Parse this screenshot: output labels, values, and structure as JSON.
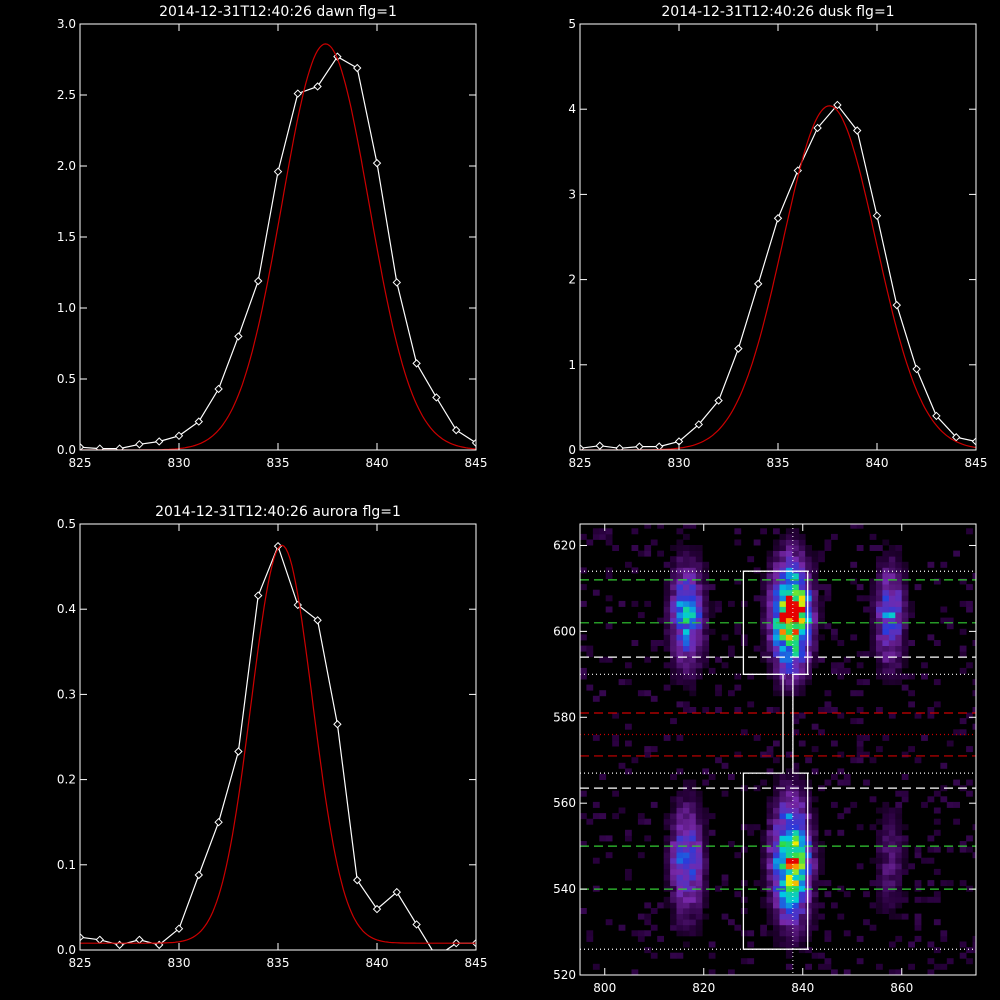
{
  "chart_data": [
    {
      "type": "line",
      "title": "2014-12-31T12:40:26 dawn flg=1",
      "xlim": [
        825,
        845
      ],
      "ylim": [
        0,
        3.0
      ],
      "xticks": [
        825,
        830,
        835,
        840,
        845
      ],
      "xtick_labels": [
        "825",
        "830",
        "835",
        "840",
        "845"
      ],
      "yticks": [
        0,
        0.5,
        1.0,
        1.5,
        2.0,
        2.5,
        3.0
      ],
      "ytick_labels": [
        "0.0",
        "0.5",
        "1.0",
        "1.5",
        "2.0",
        "2.5",
        "3.0"
      ],
      "series": [
        {
          "color": "#ffffff",
          "marker": "diamond",
          "x": [
            825,
            826,
            827,
            828,
            829,
            830,
            831,
            832,
            833,
            834,
            835,
            836,
            837,
            838,
            839,
            840,
            841,
            842,
            843,
            844,
            845
          ],
          "y": [
            0.02,
            0.01,
            0.01,
            0.04,
            0.06,
            0.1,
            0.2,
            0.43,
            0.8,
            1.19,
            1.96,
            2.51,
            2.56,
            2.77,
            2.69,
            2.02,
            1.18,
            0.61,
            0.37,
            0.14,
            0.05
          ]
        },
        {
          "color": "#cc0000",
          "kind": "gaussian-fit",
          "amplitude": 2.86,
          "center": 837.4,
          "sigma": 2.2
        }
      ]
    },
    {
      "type": "line",
      "title": "2014-12-31T12:40:26 dusk flg=1",
      "xlim": [
        825,
        845
      ],
      "ylim": [
        0,
        5
      ],
      "xticks": [
        825,
        830,
        835,
        840,
        845
      ],
      "xtick_labels": [
        "825",
        "830",
        "835",
        "840",
        "845"
      ],
      "yticks": [
        0,
        1,
        2,
        3,
        4,
        5
      ],
      "ytick_labels": [
        "0",
        "1",
        "2",
        "3",
        "4",
        "5"
      ],
      "series": [
        {
          "color": "#ffffff",
          "marker": "diamond",
          "x": [
            825,
            826,
            827,
            828,
            829,
            830,
            831,
            832,
            833,
            834,
            835,
            836,
            837,
            838,
            839,
            840,
            841,
            842,
            843,
            844,
            845
          ],
          "y": [
            0.02,
            0.05,
            0.02,
            0.04,
            0.04,
            0.1,
            0.3,
            0.58,
            1.19,
            1.95,
            2.72,
            3.28,
            3.78,
            4.05,
            3.75,
            2.75,
            1.7,
            0.95,
            0.4,
            0.15,
            0.1
          ]
        },
        {
          "color": "#cc0000",
          "kind": "gaussian-fit",
          "amplitude": 4.04,
          "center": 837.6,
          "sigma": 2.35
        }
      ]
    },
    {
      "type": "line",
      "title": "2014-12-31T12:40:26 aurora flg=1",
      "xlim": [
        825,
        845
      ],
      "ylim": [
        0,
        0.5
      ],
      "xticks": [
        825,
        830,
        835,
        840,
        845
      ],
      "xtick_labels": [
        "825",
        "830",
        "835",
        "840",
        "845"
      ],
      "yticks": [
        0,
        0.1,
        0.2,
        0.3,
        0.4,
        0.5
      ],
      "ytick_labels": [
        "0.0",
        "0.1",
        "0.2",
        "0.3",
        "0.4",
        "0.5"
      ],
      "series": [
        {
          "color": "#ffffff",
          "marker": "diamond",
          "x": [
            825,
            826,
            827,
            828,
            829,
            830,
            831,
            832,
            833,
            834,
            835,
            836,
            837,
            838,
            839,
            840,
            841,
            842,
            843,
            844,
            845
          ],
          "y": [
            0.015,
            0.012,
            0.006,
            0.012,
            0.006,
            0.025,
            0.088,
            0.15,
            0.233,
            0.416,
            0.474,
            0.405,
            0.387,
            0.265,
            0.082,
            0.048,
            0.068,
            0.03,
            -0.008,
            0.008,
            0.008
          ]
        },
        {
          "color": "#cc0000",
          "kind": "gaussian-fit",
          "amplitude": 0.467,
          "center": 835.2,
          "sigma": 1.55,
          "baseline": 0.008
        }
      ]
    },
    {
      "type": "heatmap",
      "title": "",
      "xlim": [
        795,
        875
      ],
      "ylim": [
        520,
        625
      ],
      "xticks": [
        800,
        820,
        840,
        860
      ],
      "xtick_labels": [
        "800",
        "820",
        "840",
        "860"
      ],
      "yticks": [
        520,
        540,
        560,
        580,
        600,
        620
      ],
      "ytick_labels": [
        "520",
        "540",
        "560",
        "580",
        "600",
        "620"
      ],
      "columns": [
        {
          "x": 816,
          "width": 8,
          "upper": 0.55,
          "lower": 0.45
        },
        {
          "x": 837,
          "width": 9,
          "upper": 1.0,
          "lower": 0.85
        },
        {
          "x": 857,
          "width": 7,
          "upper": 0.45,
          "lower": 0.22
        }
      ],
      "hot_spots": [
        {
          "x": 838,
          "y": 604,
          "level": 1.0
        },
        {
          "x": 838,
          "y": 545,
          "level": 0.8
        },
        {
          "x": 816,
          "y": 604,
          "level": 0.5
        },
        {
          "x": 815,
          "y": 547,
          "level": 0.5
        },
        {
          "x": 857,
          "y": 604,
          "level": 0.4
        }
      ],
      "vertical_line": {
        "x": 838,
        "color": "#ffffff",
        "style": "dotted"
      },
      "hlines": [
        {
          "y": 614,
          "color": "#ffffff",
          "style": "dotted"
        },
        {
          "y": 612,
          "color": "#33cc33",
          "style": "dashed"
        },
        {
          "y": 602,
          "color": "#33cc33",
          "style": "dashed"
        },
        {
          "y": 594,
          "color": "#ffffff",
          "style": "dashed"
        },
        {
          "y": 590,
          "color": "#ffffff",
          "style": "dotted"
        },
        {
          "y": 581,
          "color": "#cc0000",
          "style": "dashed"
        },
        {
          "y": 576,
          "color": "#cc0000",
          "style": "dotted"
        },
        {
          "y": 571,
          "color": "#cc0000",
          "style": "dashed"
        },
        {
          "y": 567,
          "color": "#ffffff",
          "style": "dotted"
        },
        {
          "y": 563.5,
          "color": "#ffffff",
          "style": "dashed"
        },
        {
          "y": 550,
          "color": "#33cc33",
          "style": "dashed"
        },
        {
          "y": 540,
          "color": "#33cc33",
          "style": "dashed"
        },
        {
          "y": 526,
          "color": "#ffffff",
          "style": "dotted"
        }
      ],
      "region_outline": {
        "color": "#ffffff",
        "points": [
          [
            828,
            614
          ],
          [
            841,
            614
          ],
          [
            841,
            590
          ],
          [
            838,
            590
          ],
          [
            838,
            567
          ],
          [
            841,
            567
          ],
          [
            841,
            526
          ],
          [
            828,
            526
          ],
          [
            828,
            567
          ],
          [
            836,
            567
          ],
          [
            836,
            590
          ],
          [
            828,
            590
          ]
        ]
      }
    }
  ]
}
